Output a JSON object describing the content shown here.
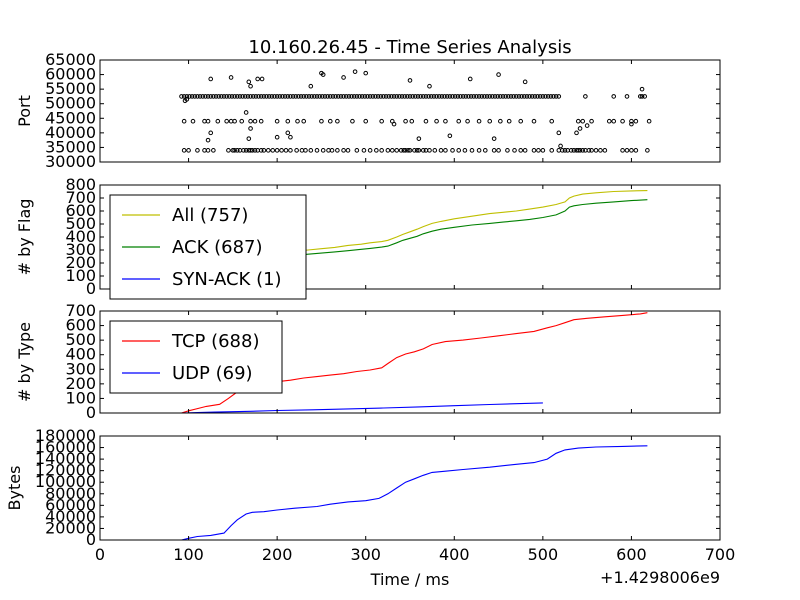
{
  "figure": {
    "title": "10.160.26.45 - Time Series Analysis",
    "xlabel": "Time / ms",
    "x_offset": "+1.4298006e9",
    "x_ticks": [
      "0",
      "100",
      "200",
      "300",
      "400",
      "500",
      "600",
      "700"
    ],
    "xlim": [
      0,
      700
    ]
  },
  "chart_data": [
    {
      "type": "scatter",
      "ylabel": "Port",
      "ylim": [
        30000,
        65000
      ],
      "y_ticks": [
        "30000",
        "35000",
        "40000",
        "45000",
        "50000",
        "55000",
        "60000",
        "65000"
      ],
      "marker": "circle",
      "bands": [
        {
          "y": 52500,
          "x": [
            92,
            95,
            98,
            101,
            104,
            107,
            110,
            113,
            116,
            119,
            122,
            125,
            128,
            131,
            134,
            137,
            140,
            143,
            146,
            149,
            152,
            155,
            158,
            161,
            164,
            167,
            170,
            173,
            176,
            179,
            182,
            185,
            188,
            191,
            194,
            197,
            200,
            203,
            206,
            209,
            212,
            215,
            218,
            221,
            224,
            227,
            230,
            233,
            236,
            239,
            242,
            245,
            248,
            251,
            254,
            257,
            260,
            263,
            266,
            269,
            272,
            275,
            278,
            281,
            284,
            287,
            290,
            293,
            296,
            299,
            302,
            305,
            308,
            311,
            314,
            317,
            320,
            323,
            326,
            329,
            332,
            335,
            338,
            341,
            344,
            347,
            350,
            353,
            356,
            359,
            362,
            365,
            368,
            371,
            374,
            377,
            380,
            383,
            386,
            389,
            392,
            395,
            398,
            401,
            404,
            407,
            410,
            413,
            416,
            419,
            422,
            425,
            428,
            431,
            434,
            437,
            440,
            443,
            446,
            449,
            452,
            455,
            458,
            461,
            464,
            467,
            470,
            473,
            476,
            479,
            482,
            485,
            488,
            491,
            494,
            497,
            500,
            503,
            506,
            509,
            512,
            515,
            518,
            580,
            595,
            610,
            612,
            615
          ]
        },
        {
          "y": 44000,
          "x": [
            95,
            105,
            118,
            122,
            133,
            143,
            148,
            152,
            160,
            170,
            175,
            182,
            200,
            212,
            223,
            230,
            250,
            260,
            268,
            285,
            300,
            318,
            330,
            345,
            352,
            368,
            380,
            390,
            405,
            415,
            428,
            440,
            452,
            462,
            475,
            490,
            510,
            540,
            545,
            555,
            575,
            580,
            590,
            600,
            605,
            620
          ]
        },
        {
          "y": 34000,
          "x": [
            95,
            100,
            110,
            118,
            122,
            128,
            145,
            150,
            152,
            155,
            158,
            162,
            165,
            168,
            170,
            172,
            175,
            178,
            182,
            185,
            190,
            195,
            200,
            205,
            210,
            215,
            222,
            228,
            232,
            238,
            245,
            252,
            258,
            262,
            268,
            275,
            280,
            290,
            298,
            305,
            312,
            318,
            325,
            330,
            335,
            340,
            343,
            345,
            348,
            350,
            355,
            358,
            360,
            365,
            368,
            372,
            378,
            385,
            390,
            398,
            405,
            412,
            420,
            428,
            435,
            445,
            450,
            460,
            468,
            475,
            480,
            490,
            495,
            500,
            510,
            518,
            522,
            525,
            528,
            532,
            535,
            538,
            540,
            542,
            545,
            548,
            552,
            555,
            560,
            565,
            570,
            590,
            595,
            600,
            605,
            618
          ]
        },
        {
          "y": null,
          "points": [
            [
              125,
              58500
            ],
            [
              148,
              59000
            ],
            [
              168,
              57500
            ],
            [
              178,
              58500
            ],
            [
              183,
              58500
            ],
            [
              96,
              51000
            ],
            [
              98,
              51500
            ],
            [
              250,
              60500
            ],
            [
              252,
              60000
            ],
            [
              275,
              59000
            ],
            [
              300,
              60500
            ],
            [
              350,
              58000
            ],
            [
              372,
              56000
            ],
            [
              418,
              58500
            ],
            [
              450,
              60000
            ],
            [
              480,
              57500
            ],
            [
              125,
              40000
            ],
            [
              165,
              47000
            ],
            [
              212,
              40000
            ],
            [
              122,
              37500
            ],
            [
              200,
              38500
            ],
            [
              238,
              56000
            ],
            [
              288,
              61000
            ],
            [
              170,
              56000
            ],
            [
              170,
              41500
            ],
            [
              215,
              38500
            ],
            [
              332,
              43000
            ],
            [
              360,
              38000
            ],
            [
              395,
              39000
            ],
            [
              445,
              38000
            ],
            [
              518,
              40000
            ],
            [
              538,
              40000
            ],
            [
              542,
              41500
            ],
            [
              550,
              42500
            ],
            [
              168,
              38000
            ],
            [
              520,
              35500
            ],
            [
              600,
              43000
            ],
            [
              612,
              55000
            ],
            [
              548,
              52500
            ]
          ]
        }
      ]
    },
    {
      "type": "line",
      "ylabel": "# by Flag",
      "ylim": [
        0,
        800
      ],
      "y_ticks": [
        "0",
        "100",
        "200",
        "300",
        "400",
        "500",
        "600",
        "700",
        "800"
      ],
      "legend": "upper-left",
      "series": [
        {
          "name": "All (757)",
          "color": "#bfbf00",
          "x": [
            92,
            96,
            105,
            115,
            125,
            135,
            145,
            155,
            165,
            175,
            190,
            200,
            210,
            220,
            235,
            250,
            265,
            280,
            295,
            305,
            318,
            325,
            335,
            342,
            350,
            358,
            365,
            375,
            385,
            400,
            420,
            440,
            455,
            470,
            485,
            500,
            515,
            525,
            530,
            535,
            545,
            560,
            580,
            600,
            618
          ],
          "y": [
            0,
            10,
            25,
            55,
            90,
            130,
            170,
            205,
            230,
            245,
            258,
            270,
            280,
            290,
            300,
            310,
            320,
            335,
            345,
            355,
            365,
            375,
            400,
            420,
            440,
            460,
            480,
            505,
            520,
            540,
            560,
            580,
            590,
            600,
            615,
            630,
            650,
            670,
            700,
            715,
            730,
            740,
            750,
            755,
            757
          ]
        },
        {
          "name": "ACK (687)",
          "color": "#008000",
          "x": [
            92,
            96,
            105,
            115,
            125,
            135,
            145,
            155,
            165,
            175,
            190,
            200,
            210,
            220,
            235,
            250,
            265,
            280,
            295,
            305,
            318,
            325,
            335,
            342,
            350,
            358,
            365,
            375,
            385,
            400,
            420,
            440,
            455,
            470,
            485,
            500,
            515,
            525,
            530,
            535,
            545,
            560,
            580,
            600,
            618
          ],
          "y": [
            0,
            8,
            20,
            45,
            75,
            110,
            145,
            180,
            205,
            220,
            232,
            242,
            250,
            258,
            268,
            276,
            285,
            295,
            305,
            312,
            322,
            330,
            355,
            375,
            390,
            405,
            425,
            445,
            460,
            475,
            492,
            505,
            515,
            525,
            535,
            550,
            570,
            600,
            630,
            640,
            650,
            660,
            670,
            680,
            687
          ]
        },
        {
          "name": "SYN-ACK (1)",
          "color": "#0000ff",
          "x": [],
          "y": []
        }
      ]
    },
    {
      "type": "line",
      "ylabel": "# by Type",
      "ylim": [
        0,
        700
      ],
      "y_ticks": [
        "0",
        "100",
        "200",
        "300",
        "400",
        "500",
        "600",
        "700"
      ],
      "legend": "upper-left",
      "series": [
        {
          "name": "TCP (688)",
          "color": "#ff0000",
          "x": [
            92,
            100,
            110,
            120,
            135,
            145,
            155,
            165,
            175,
            190,
            200,
            215,
            230,
            245,
            260,
            275,
            290,
            305,
            318,
            325,
            335,
            345,
            355,
            365,
            375,
            390,
            410,
            430,
            450,
            470,
            490,
            505,
            515,
            525,
            535,
            550,
            570,
            590,
            610,
            618
          ],
          "y": [
            0,
            15,
            30,
            45,
            60,
            100,
            145,
            175,
            190,
            205,
            215,
            225,
            240,
            250,
            260,
            270,
            285,
            295,
            310,
            340,
            380,
            405,
            420,
            440,
            470,
            490,
            500,
            515,
            530,
            545,
            560,
            585,
            600,
            620,
            640,
            650,
            660,
            670,
            680,
            688
          ]
        },
        {
          "name": "UDP (69)",
          "color": "#0000ff",
          "x": [
            92,
            110,
            130,
            150,
            170,
            200,
            240,
            280,
            320,
            360,
            400,
            440,
            470,
            500
          ],
          "y": [
            0,
            3,
            6,
            9,
            12,
            17,
            22,
            28,
            34,
            42,
            50,
            58,
            64,
            69
          ]
        }
      ]
    },
    {
      "type": "line",
      "ylabel": "Bytes",
      "ylim": [
        0,
        180000
      ],
      "y_ticks": [
        "0",
        "20000",
        "40000",
        "60000",
        "80000",
        "100000",
        "120000",
        "140000",
        "160000",
        "180000"
      ],
      "series": [
        {
          "color": "#0000ff",
          "x": [
            92,
            100,
            110,
            125,
            140,
            148,
            155,
            165,
            172,
            185,
            200,
            220,
            245,
            260,
            280,
            300,
            315,
            325,
            335,
            345,
            355,
            365,
            375,
            390,
            410,
            440,
            470,
            490,
            505,
            515,
            525,
            540,
            560,
            590,
            618
          ],
          "y": [
            0,
            3000,
            6000,
            8000,
            12000,
            25000,
            35000,
            45000,
            48000,
            49000,
            52000,
            55000,
            58000,
            62000,
            66000,
            68000,
            72000,
            80000,
            90000,
            100000,
            106000,
            112000,
            117000,
            119000,
            122000,
            126000,
            131000,
            134000,
            140000,
            150000,
            156000,
            159000,
            161000,
            162000,
            163000
          ]
        }
      ]
    }
  ]
}
